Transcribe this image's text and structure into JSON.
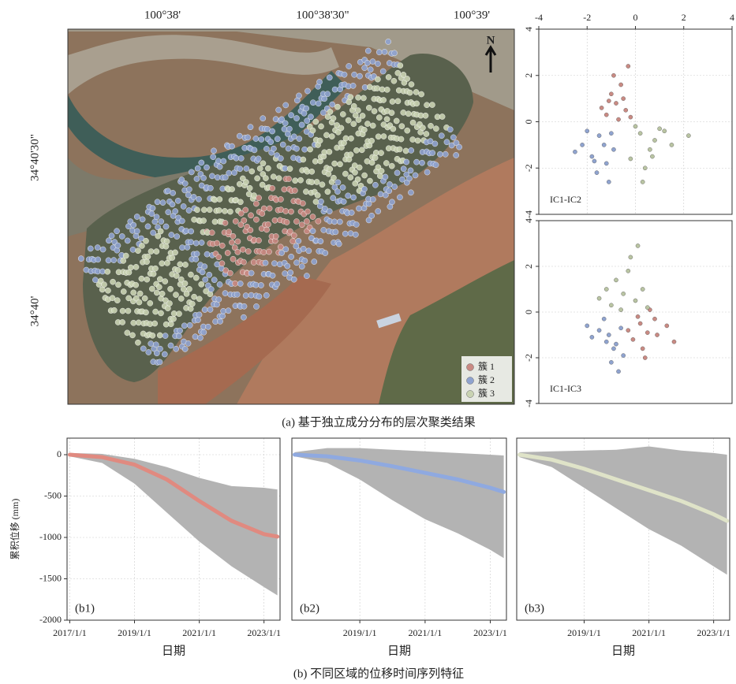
{
  "map": {
    "xticks": [
      "100°38'",
      "100°38'30\"",
      "100°39'"
    ],
    "yticks": [
      "34°40'30\"",
      "34°40'"
    ],
    "north": "N",
    "legend": [
      {
        "label": "簇 1",
        "color": "#c98a83"
      },
      {
        "label": "簇 2",
        "color": "#8fa3cf"
      },
      {
        "label": "簇 3",
        "color": "#c9d3b2"
      }
    ]
  },
  "captions": {
    "a": "(a) 基于独立成分分布的层次聚类结果",
    "b": "(b) 不同区域的位移时间序列特征"
  },
  "chart_data": [
    {
      "type": "scatter",
      "label": "IC1-IC2",
      "xlim": [
        -4,
        4
      ],
      "ylim": [
        -4,
        4
      ],
      "xticks": [
        -4,
        -2,
        0,
        2,
        4
      ],
      "yticks": [
        -4,
        -2,
        0,
        2,
        4
      ],
      "grid": true,
      "series": [
        {
          "color": "#c98a83",
          "x": [
            -1.2,
            -0.8,
            -0.4,
            -1.0,
            -0.6,
            -0.2,
            -1.4,
            -0.9,
            -0.5,
            -0.3,
            -1.1,
            -0.7
          ],
          "y": [
            0.3,
            0.8,
            0.5,
            1.2,
            1.6,
            0.2,
            0.6,
            2.0,
            1.0,
            2.4,
            0.9,
            0.1
          ]
        },
        {
          "color": "#8fa3cf",
          "x": [
            -2.2,
            -1.8,
            -1.5,
            -1.2,
            -0.9,
            -2.0,
            -1.6,
            -1.3,
            -1.0,
            -2.5,
            -1.7,
            -1.1
          ],
          "y": [
            -1.0,
            -1.5,
            -0.6,
            -1.8,
            -1.2,
            -0.4,
            -2.2,
            -1.0,
            -0.5,
            -1.3,
            -1.7,
            -2.6
          ]
        },
        {
          "color": "#b9c4a2",
          "x": [
            0.2,
            0.6,
            1.0,
            -0.2,
            0.4,
            0.8,
            1.5,
            0.0,
            0.3,
            1.2,
            2.2,
            0.7
          ],
          "y": [
            -0.5,
            -1.2,
            -0.3,
            -1.6,
            -2.0,
            -0.8,
            -1.0,
            -0.2,
            -2.6,
            -0.4,
            -0.6,
            -1.5
          ]
        }
      ]
    },
    {
      "type": "scatter",
      "label": "IC1-IC3",
      "xlim": [
        -4,
        4
      ],
      "ylim": [
        -4,
        4
      ],
      "yticks": [
        -4,
        -2,
        0,
        2,
        4
      ],
      "grid": true,
      "series": [
        {
          "color": "#c98a83",
          "x": [
            0.2,
            0.5,
            0.8,
            -0.1,
            0.3,
            0.9,
            1.3,
            0.1,
            0.6,
            -0.3,
            1.6,
            0.4
          ],
          "y": [
            -0.5,
            -0.9,
            -0.3,
            -1.2,
            -1.6,
            -1.0,
            -0.6,
            -0.2,
            0.1,
            -0.8,
            -1.3,
            -2.0
          ]
        },
        {
          "color": "#8fa3cf",
          "x": [
            -1.5,
            -1.2,
            -0.9,
            -0.6,
            -1.8,
            -1.0,
            -0.7,
            -1.3,
            -0.5,
            -2.0,
            -1.1,
            -0.8
          ],
          "y": [
            -0.8,
            -1.3,
            -1.6,
            -0.7,
            -1.1,
            -2.2,
            -2.6,
            -0.3,
            -1.9,
            -0.6,
            -1.0,
            -1.4
          ]
        },
        {
          "color": "#b9c4a2",
          "x": [
            -1.0,
            -0.5,
            0.0,
            -0.8,
            -0.3,
            0.3,
            -1.5,
            -0.2,
            0.5,
            -0.6,
            -1.2,
            0.1
          ],
          "y": [
            0.3,
            0.8,
            0.5,
            1.4,
            1.8,
            1.0,
            0.6,
            2.4,
            0.2,
            0.1,
            1.0,
            2.9
          ]
        }
      ]
    },
    {
      "type": "line",
      "label": "(b1)",
      "xlabel": "日期",
      "ylabel": "累积位移 (mm)",
      "xlim": [
        "2016-12-01",
        "2023-07-01"
      ],
      "ylim": [
        -2000,
        200
      ],
      "xticks": [
        {
          "value": "2017-01-01",
          "label": "2017/1/1"
        },
        {
          "value": "2019-01-01",
          "label": "2019/1/1"
        },
        {
          "value": "2021-01-01",
          "label": "2021/1/1"
        },
        {
          "value": "2023-01-01",
          "label": "2023/1/1"
        }
      ],
      "yticks": [
        0,
        -500,
        -1000,
        -1500,
        -2000
      ],
      "grid": true,
      "x": [
        "2017-01-01",
        "2018-01-01",
        "2019-01-01",
        "2020-01-01",
        "2021-01-01",
        "2022-01-01",
        "2023-01-01",
        "2023-06-01"
      ],
      "envelope": {
        "color": "#b3b3b3",
        "upper": [
          20,
          10,
          -50,
          -150,
          -280,
          -380,
          -400,
          -420
        ],
        "lower": [
          -20,
          -100,
          -350,
          -700,
          -1050,
          -1350,
          -1600,
          -1700
        ]
      },
      "mean": {
        "color": "#e08a80",
        "values": [
          0,
          -30,
          -120,
          -300,
          -560,
          -800,
          -960,
          -990
        ]
      }
    },
    {
      "type": "line",
      "label": "(b2)",
      "xlabel": "日期",
      "xlim": [
        "2016-12-01",
        "2023-07-01"
      ],
      "ylim": [
        -2000,
        200
      ],
      "xticks": [
        {
          "value": "2019-01-01",
          "label": "2019/1/1"
        },
        {
          "value": "2021-01-01",
          "label": "2021/1/1"
        },
        {
          "value": "2023-01-01",
          "label": "2023/1/1"
        }
      ],
      "grid": true,
      "x": [
        "2017-01-01",
        "2018-01-01",
        "2019-01-01",
        "2020-01-01",
        "2021-01-01",
        "2022-01-01",
        "2023-01-01",
        "2023-06-01"
      ],
      "envelope": {
        "color": "#b3b3b3",
        "upper": [
          30,
          80,
          80,
          60,
          40,
          20,
          0,
          -10
        ],
        "lower": [
          -20,
          -100,
          -300,
          -550,
          -780,
          -950,
          -1150,
          -1250
        ]
      },
      "mean": {
        "color": "#8fa9e0",
        "values": [
          0,
          -20,
          -70,
          -140,
          -220,
          -300,
          -400,
          -450
        ]
      }
    },
    {
      "type": "line",
      "label": "(b3)",
      "xlabel": "日期",
      "xlim": [
        "2016-12-01",
        "2023-07-01"
      ],
      "ylim": [
        -2000,
        200
      ],
      "xticks": [
        {
          "value": "2019-01-01",
          "label": "2019/1/1"
        },
        {
          "value": "2021-01-01",
          "label": "2021/1/1"
        },
        {
          "value": "2023-01-01",
          "label": "2023/1/1"
        }
      ],
      "grid": true,
      "x": [
        "2017-01-01",
        "2018-01-01",
        "2019-01-01",
        "2020-01-01",
        "2021-01-01",
        "2022-01-01",
        "2023-01-01",
        "2023-06-01"
      ],
      "envelope": {
        "color": "#b3b3b3",
        "upper": [
          30,
          40,
          50,
          60,
          100,
          50,
          20,
          0
        ],
        "lower": [
          -30,
          -150,
          -400,
          -650,
          -900,
          -1100,
          -1350,
          -1450
        ]
      },
      "mean": {
        "color": "#dfe3c8",
        "values": [
          0,
          -60,
          -170,
          -300,
          -430,
          -560,
          -720,
          -800
        ]
      }
    }
  ]
}
